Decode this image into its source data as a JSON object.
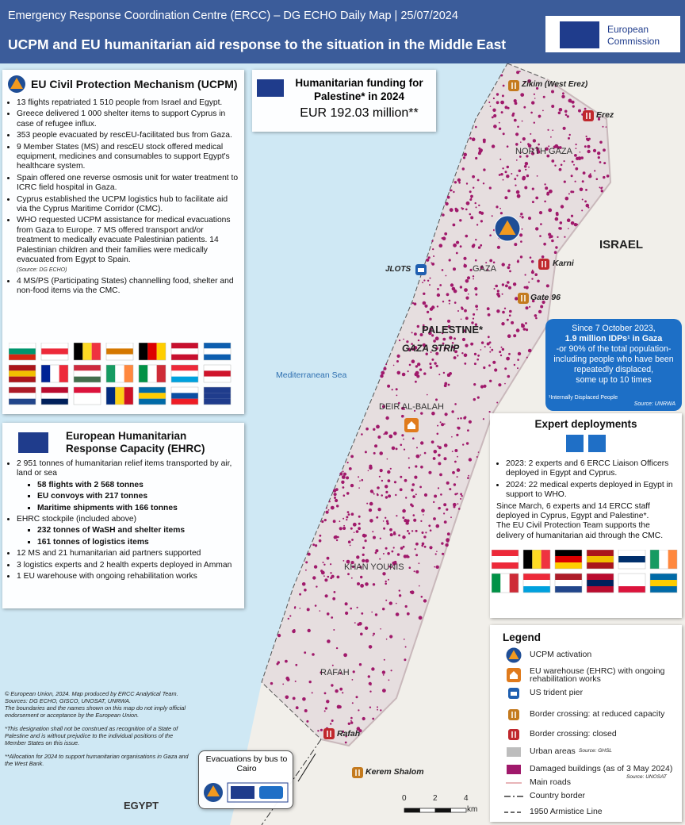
{
  "header": {
    "line1": "Emergency Response Coordination Centre (ERCC) – DG ECHO Daily Map | 25/07/2024",
    "line2": "UCPM and EU humanitarian aid response to the situation in the Middle East",
    "logo": [
      "European",
      "Commission"
    ]
  },
  "ucpm": {
    "title": "EU Civil Protection Mechanism (UCPM)",
    "bullets": [
      "13 flights repatriated 1 510 people from Israel and Egypt.",
      "Greece delivered 1 000 shelter items to support Cyprus in case of refugee influx.",
      "353 people evacuated by rescEU-facilitated bus from Gaza.",
      "9 Member States (MS) and rescEU stock offered medical equipment, medicines and consumables to support Egypt's healthcare system.",
      "Spain offered one reverse osmosis unit for water treatment to ICRC field hospital in Gaza.",
      "Cyprus established the UCPM logistics hub to facilitate aid via the Cyprus Maritime Corridor (CMC).",
      "WHO requested UCPM assistance for medical evacuations from Gaza to Europe. 7 MS offered transport and/or treatment to medically evacuate Palestinian patients. 14 Palestinian children and their families were medically evacuated from Egypt to Spain.",
      "4 MS/PS (Participating States) channelling food, shelter and non-food items via the CMC."
    ],
    "source": "(Source: DG ECHO)"
  },
  "funding": {
    "title": "Humanitarian funding for Palestine* in 2024",
    "amount": "EUR 192.03 million**"
  },
  "ehrc": {
    "title": "European Humanitarian Response Capacity (EHRC)",
    "items": [
      {
        "text": "2 951 tonnes of humanitarian relief items transported by air, land or sea",
        "sub": [
          "58 flights with 2 568 tonnes",
          "EU convoys with 217 tonnes",
          "Maritime shipments with 166 tonnes"
        ]
      },
      {
        "text": "EHRC stockpile (included above)",
        "sub": [
          "232 tonnes of WaSH and shelter items",
          "161 tonnes of logistics items"
        ]
      },
      {
        "text": "12 MS and 21 humanitarian aid partners supported",
        "sub": []
      },
      {
        "text": "3 logistics experts and 2 health experts deployed in Amman",
        "sub": []
      },
      {
        "text": "1 EU warehouse with ongoing rehabilitation works",
        "sub": []
      }
    ]
  },
  "map": {
    "labels": [
      "Zikim (West Erez)",
      "Erez",
      "NORTH GAZA",
      "ISRAEL",
      "JLOTS",
      "GAZA",
      "Karni",
      "Gate 96",
      "PALESTINE*",
      "GAZA STRIP",
      "Mediterranean Sea",
      "DEIR AL-BALAH",
      "KHAN YOUNIS",
      "RAFAH",
      "Rafah",
      "Kerem Shalom",
      "EGYPT"
    ],
    "scale": {
      "ticks": [
        "0",
        "2",
        "4"
      ],
      "unit": "km"
    }
  },
  "idp": {
    "lines": [
      "Since 7 October 2023,",
      "1.9 million IDPs¹ in Gaza",
      "-or 90% of the total population-",
      "including people who have been",
      "repeatedly displaced,",
      "some up to 10 times"
    ],
    "footnote": "¹Internally Displaced People",
    "source": "Source: UNRWA"
  },
  "experts": {
    "title": "Expert deployments",
    "bullets": [
      "2023: 2 experts and 6 ERCC Liaison Officers deployed in Egypt and Cyprus.",
      "2024: 22 medical experts deployed in Egypt in support to WHO."
    ],
    "paragraphs": [
      "Since March, 6 experts and 14 ERCC staff deployed in Cyprus, Egypt and Palestine*.",
      "The EU Civil Protection Team supports the delivery of humanitarian aid through the CMC."
    ]
  },
  "legend": {
    "title": "Legend",
    "items": [
      "UCPM activation",
      "EU warehouse (EHRC) with ongoing rehabilitation works",
      "US trident pier",
      "Border crossing: at reduced capacity",
      "Border crossing: closed",
      "Urban areas",
      "Damaged buildings (as of 3 May 2024)",
      "Main roads",
      "Country border",
      "1950 Armistice Line"
    ],
    "sources": [
      "Source: GHSL",
      "Source: UNOSAT"
    ]
  },
  "bus": {
    "title": "Evacuations by bus to Cairo"
  },
  "footer": {
    "credits": [
      "© European Union, 2024. Map produced by ERCC Analytical Team.",
      "Sources: DG ECHO, GISCO, UNOSAT, UNRWA.",
      "The boundaries and the names shown on this map do not imply official endorsement or acceptance by the European Union."
    ],
    "notes": [
      "*This designation shall not be construed as recognition of a State of Palestine and is without prejudice to the individual positions of the Member States on this issue.",
      "**Allocation for 2024 to support humanitarian organisations in Gaza and the West Bank."
    ]
  }
}
